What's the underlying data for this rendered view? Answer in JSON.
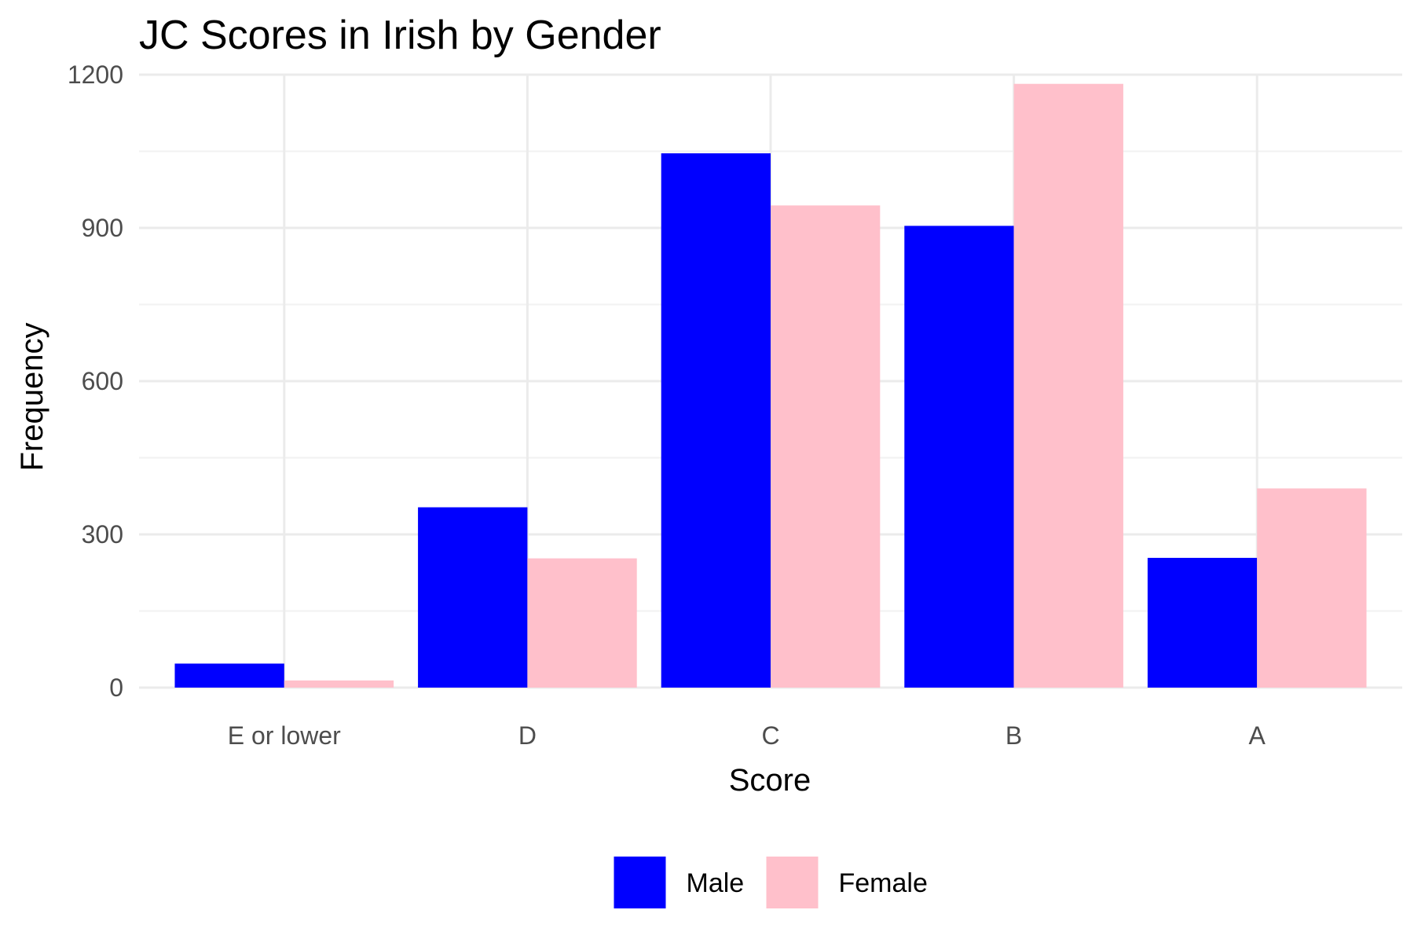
{
  "chart_data": {
    "type": "bar",
    "title": "JC Scores in Irish by Gender",
    "xlabel": "Score",
    "ylabel": "Frequency",
    "categories": [
      "E or lower",
      "D",
      "C",
      "B",
      "A"
    ],
    "series": [
      {
        "name": "Male",
        "color": "#0000FF",
        "values": [
          47,
          353,
          1046,
          904,
          254
        ]
      },
      {
        "name": "Female",
        "color": "#FFC0CB",
        "values": [
          14,
          253,
          944,
          1182,
          390
        ]
      }
    ],
    "ylim": [
      0,
      1200
    ],
    "yticks": [
      "0",
      "300",
      "600",
      "900",
      "1200"
    ],
    "grid": true,
    "legend_position": "bottom"
  }
}
